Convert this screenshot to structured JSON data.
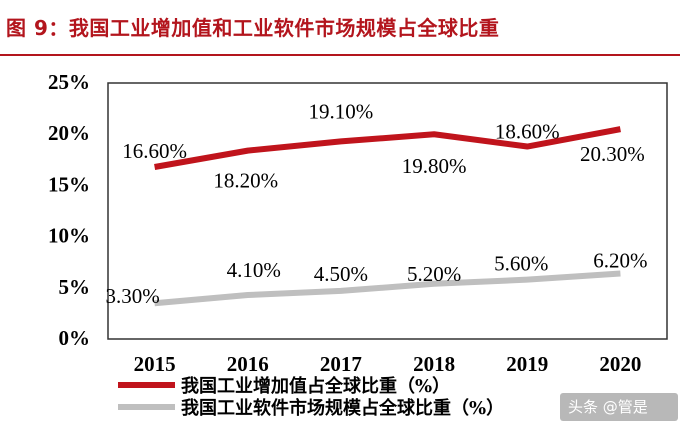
{
  "figure": {
    "title": "图 9：我国工业增加值和工业软件市场规模占全球比重",
    "accent_color": "#b3151d"
  },
  "watermark": "头条 @管是",
  "chart_data": {
    "type": "line",
    "categories": [
      "2015",
      "2016",
      "2017",
      "2018",
      "2019",
      "2020"
    ],
    "ylim": [
      0,
      25
    ],
    "yticks": [
      "0%",
      "5%",
      "10%",
      "15%",
      "20%",
      "25%"
    ],
    "ytick_values": [
      0,
      5,
      10,
      15,
      20,
      25
    ],
    "grid": false,
    "legend_position": "bottom",
    "series": [
      {
        "name": "我国工业增加值占全球比重（%）",
        "color": "#c0141c",
        "values": [
          16.6,
          18.2,
          19.1,
          19.8,
          18.6,
          20.3
        ],
        "labels": [
          "16.60%",
          "18.20%",
          "19.10%",
          "19.80%",
          "18.60%",
          "20.30%"
        ]
      },
      {
        "name": "我国工业软件市场规模占全球比重（%）",
        "color": "#bfbfbf",
        "values": [
          3.3,
          4.1,
          4.5,
          5.2,
          5.6,
          6.2
        ],
        "labels": [
          "3.30%",
          "4.10%",
          "4.50%",
          "5.20%",
          "5.60%",
          "6.20%"
        ]
      }
    ]
  }
}
